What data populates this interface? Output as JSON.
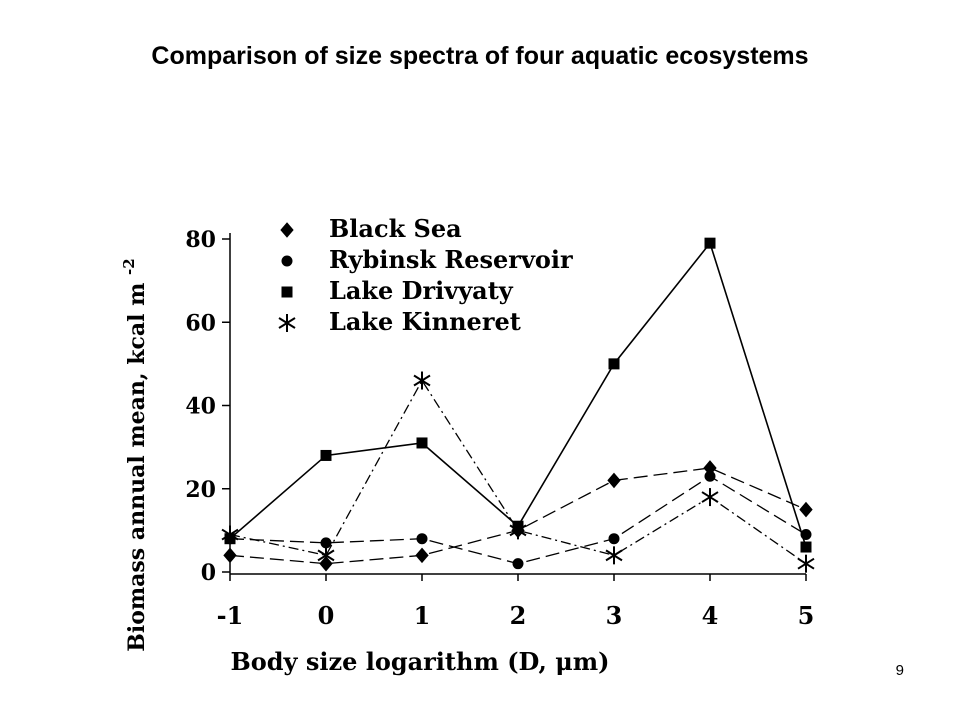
{
  "slide": {
    "title": "Comparison of size spectra of four aquatic ecosystems",
    "page_number": "9"
  },
  "chart_data": {
    "type": "line",
    "title": "",
    "xlabel": "Body size logarithm (D, μm)",
    "ylabel_main": "Biomass annual mean, kcal m",
    "ylabel_superscript": "-2",
    "x": [
      -1,
      0,
      1,
      2,
      3,
      4,
      5
    ],
    "xlim": [
      -1,
      5
    ],
    "ylim": [
      0,
      80
    ],
    "yticks": [
      0,
      20,
      40,
      60,
      80
    ],
    "grid": false,
    "legend_position": "top-left",
    "series": [
      {
        "name": "Black Sea",
        "marker": "diamond",
        "dash": "long",
        "values": [
          4,
          2,
          4,
          10,
          22,
          25,
          15
        ]
      },
      {
        "name": "Rybinsk Reservoir",
        "marker": "circle",
        "dash": "long",
        "values": [
          8,
          7,
          8,
          2,
          8,
          23,
          9
        ]
      },
      {
        "name": "Lake Drivyaty",
        "marker": "square",
        "dash": "solid",
        "values": [
          8,
          28,
          31,
          11,
          50,
          79,
          6
        ]
      },
      {
        "name": "Lake Kinneret",
        "marker": "asterisk",
        "dash": "dashdot",
        "values": [
          9,
          4,
          46,
          10,
          4,
          18,
          2
        ]
      }
    ],
    "colors": {
      "line": "#000000",
      "marker": "#000000"
    }
  }
}
